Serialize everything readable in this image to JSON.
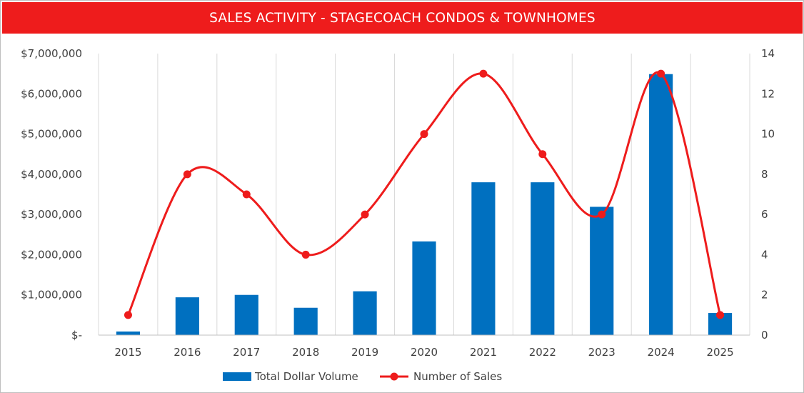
{
  "chart_data": {
    "type": "bar",
    "title": "SALES ACTIVITY - STAGECOACH CONDOS & TOWNHOMES",
    "categories": [
      "2015",
      "2016",
      "2017",
      "2018",
      "2019",
      "2020",
      "2021",
      "2022",
      "2023",
      "2024",
      "2025"
    ],
    "series": [
      {
        "name": "Total Dollar Volume",
        "type": "bar",
        "axis": "left",
        "color": "#0070c0",
        "values": [
          90000,
          940000,
          1000000,
          680000,
          1090000,
          2330000,
          3800000,
          3800000,
          3190000,
          6490000,
          550000
        ]
      },
      {
        "name": "Number of Sales",
        "type": "line",
        "smooth": true,
        "axis": "right",
        "color": "#ee1c1c",
        "values": [
          1,
          8,
          7,
          4,
          6,
          10,
          13,
          9,
          6,
          13,
          1
        ]
      }
    ],
    "y_left": {
      "ylim": [
        0,
        7000000
      ],
      "tick_labels": [
        "$-",
        "$1,000,000",
        "$2,000,000",
        "$3,000,000",
        "$4,000,000",
        "$5,000,000",
        "$6,000,000",
        "$7,000,000"
      ]
    },
    "y_right": {
      "ylim": [
        0,
        14
      ],
      "tick_labels": [
        "0",
        "2",
        "4",
        "6",
        "8",
        "10",
        "12",
        "14"
      ]
    },
    "grid": "vertical",
    "legend": "bottom-center",
    "xlabel": "",
    "ylabel": ""
  }
}
